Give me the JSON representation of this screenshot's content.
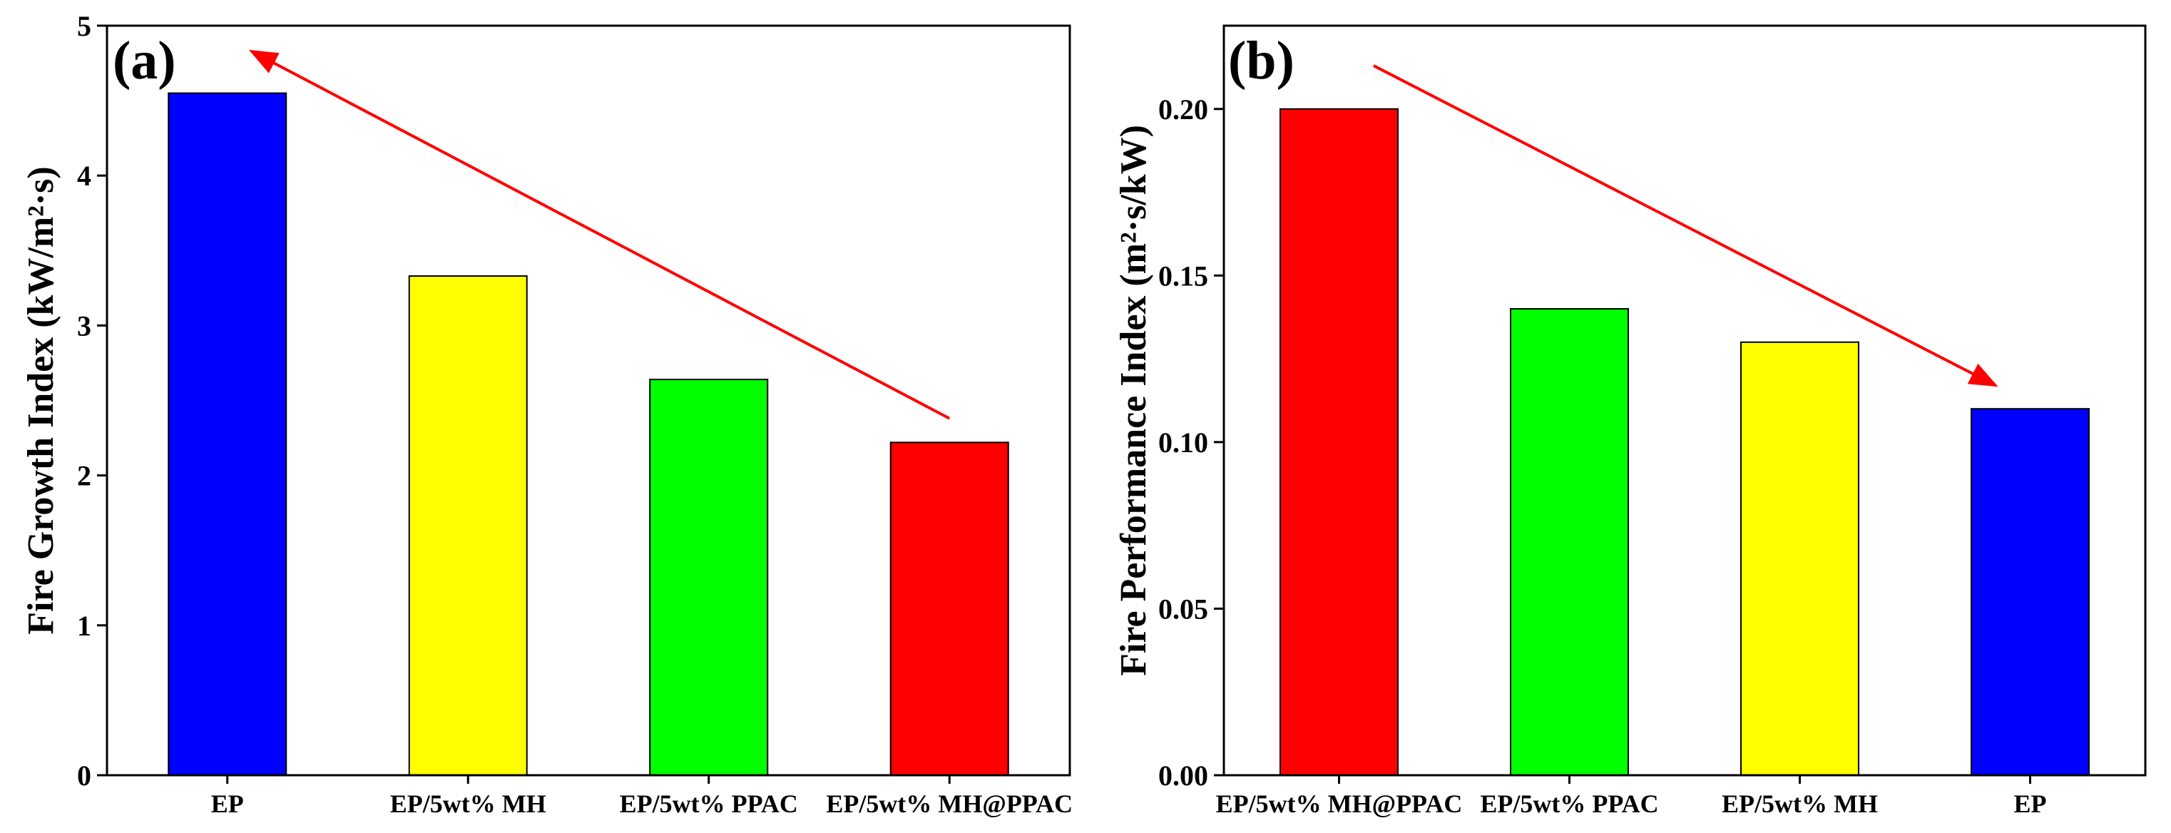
{
  "chart_data": [
    {
      "type": "bar",
      "panel_label": "(a)",
      "categories": [
        "EP",
        "EP/5wt% MH",
        "EP/5wt% PPAC",
        "EP/5wt% MH@PPAC"
      ],
      "values": [
        4.55,
        3.33,
        2.64,
        2.22
      ],
      "colors": [
        "#0000ff",
        "#ffff00",
        "#00ff00",
        "#ff0000"
      ],
      "title": "",
      "xlabel": "",
      "ylabel": "Fire Growth Index (kW/m²·s)",
      "ylim": [
        0,
        5
      ],
      "yticks": [
        "0",
        "1",
        "2",
        "3",
        "4",
        "5"
      ],
      "arrow": {
        "from_category": 3,
        "from_value": 2.38,
        "to_category": 0.1,
        "to_value": 4.83,
        "color": "#ff0000"
      }
    },
    {
      "type": "bar",
      "panel_label": "(b)",
      "categories": [
        "EP/5wt% MH@PPAC",
        "EP/5wt% PPAC",
        "EP/5wt% MH",
        "EP"
      ],
      "values": [
        0.2,
        0.14,
        0.13,
        0.11
      ],
      "colors": [
        "#ff0000",
        "#00ff00",
        "#ffff00",
        "#0000ff"
      ],
      "title": "",
      "xlabel": "",
      "ylabel": "Fire Performance Index (m²·s/kW)",
      "ylim": [
        0,
        0.225
      ],
      "yticks": [
        "0.00",
        "0.05",
        "0.10",
        "0.15",
        "0.20"
      ],
      "arrow": {
        "from_category": 0.15,
        "from_value": 0.213,
        "to_category": 2.85,
        "to_value": 0.117,
        "color": "#ff0000"
      }
    }
  ]
}
